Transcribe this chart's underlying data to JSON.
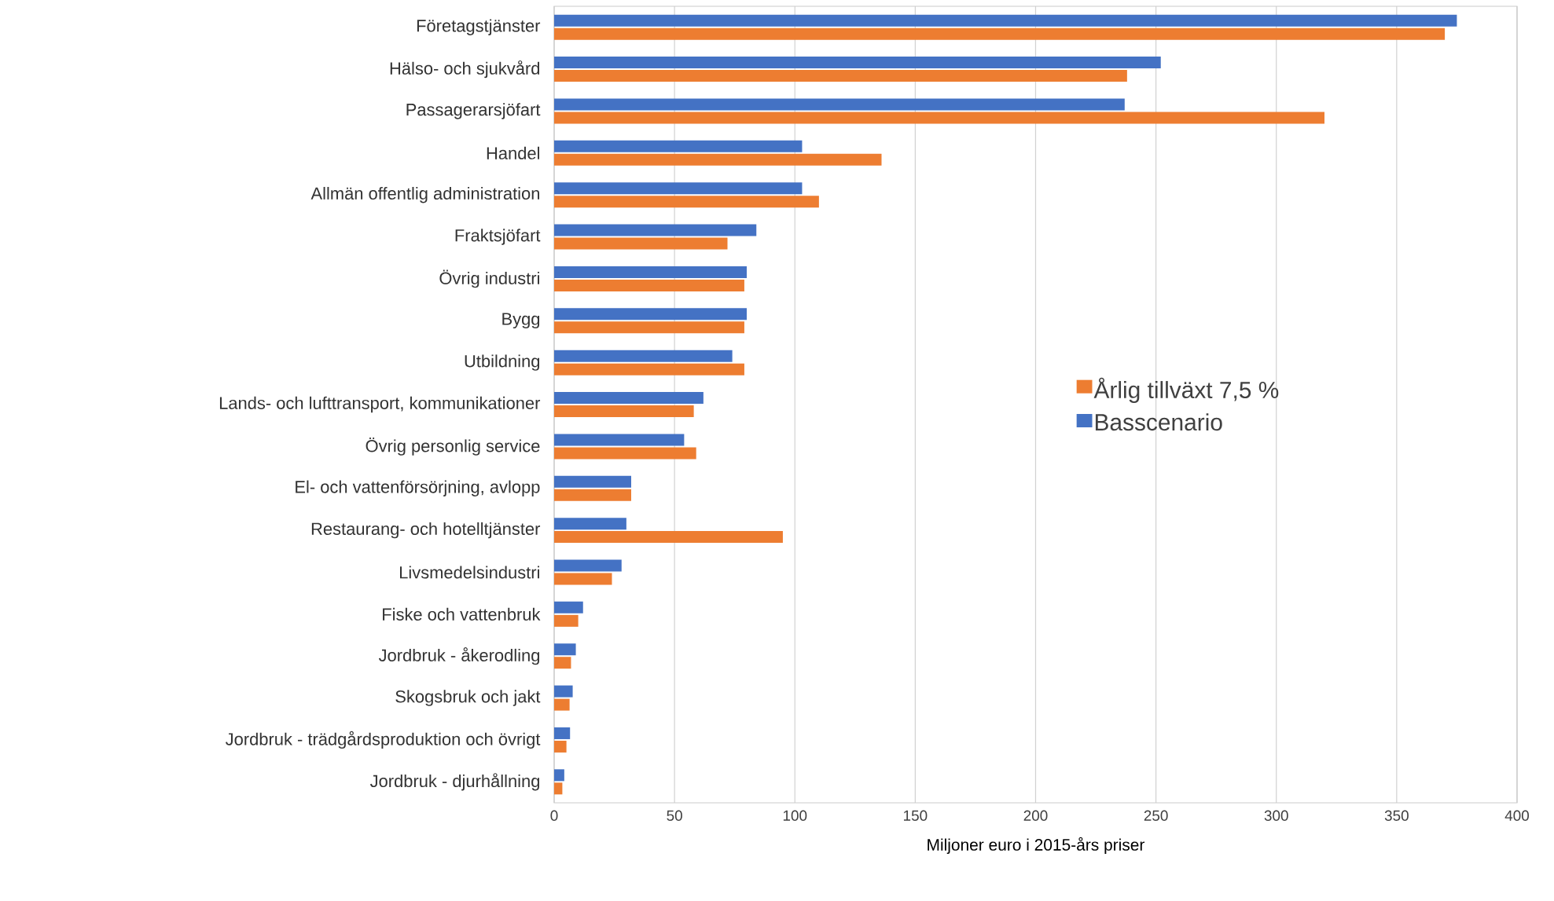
{
  "chart_data": {
    "type": "bar",
    "orientation": "horizontal",
    "xlabel": "Miljoner euro i 2015-års priser",
    "categories": [
      "Företagstjänster",
      "Hälso- och sjukvård",
      "Passagerarsjöfart",
      "Handel",
      "Allmän offentlig administration",
      "Fraktsjöfart",
      "Övrig industri",
      "Bygg",
      "Utbildning",
      "Lands- och lufttransport, kommunikationer",
      "Övrig personlig service",
      "El- och vattenförsörjning, avlopp",
      "Restaurang- och hotelltjänster",
      "Livsmedelsindustri",
      "Fiske och vattenbruk",
      "Jordbruk - åkerodling",
      "Skogsbruk och jakt",
      "Jordbruk - trädgårdsproduktion och övrigt",
      "Jordbruk - djurhållning"
    ],
    "series": [
      {
        "name": "Årlig tillväxt 7,5 %",
        "color": "#ed7d31",
        "values": [
          370,
          238,
          320,
          136,
          110,
          72,
          79,
          79,
          79,
          58,
          59,
          32,
          95,
          24,
          10,
          7,
          6.4,
          5.1,
          3.4
        ]
      },
      {
        "name": "Basscenario",
        "color": "#4472c4",
        "values": [
          375,
          252,
          237,
          103,
          103,
          84,
          80,
          80,
          74,
          62,
          54,
          32,
          30,
          28,
          12,
          9,
          7.7,
          6.6,
          4.2
        ]
      }
    ],
    "xlim": [
      0,
      400
    ],
    "xticks": [
      0,
      50,
      100,
      150,
      200,
      250,
      300,
      350,
      400
    ],
    "grid": "x",
    "legend": "right"
  }
}
